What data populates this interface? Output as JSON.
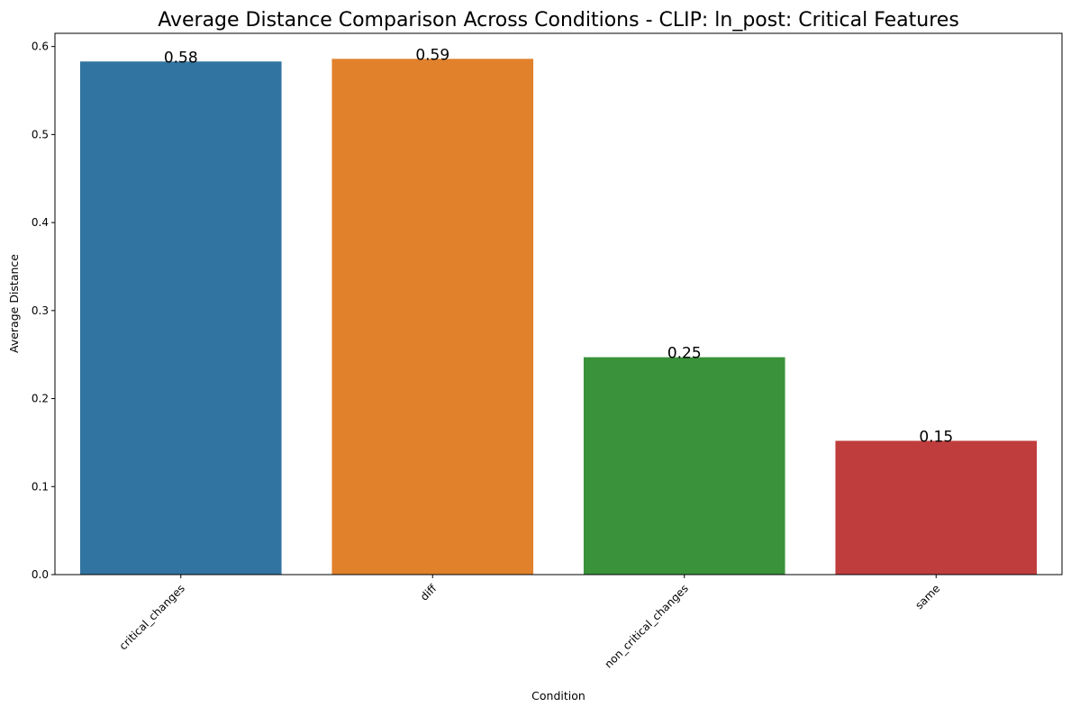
{
  "chart_data": {
    "type": "bar",
    "title": "Average Distance Comparison Across Conditions - CLIP: ln_post: Critical Features",
    "xlabel": "Condition",
    "ylabel": "Average Distance",
    "categories": [
      "critical_changes",
      "diff",
      "non_critical_changes",
      "same"
    ],
    "values": [
      0.583,
      0.586,
      0.247,
      0.152
    ],
    "data_labels": [
      "0.58",
      "0.59",
      "0.25",
      "0.15"
    ],
    "colors": [
      "#3274a1",
      "#e1812c",
      "#3a923a",
      "#c03d3e"
    ],
    "ylim": [
      0,
      0.615
    ],
    "yticks": [
      0.0,
      0.1,
      0.2,
      0.3,
      0.4,
      0.5,
      0.6
    ],
    "ytick_labels": [
      "0.0",
      "0.1",
      "0.2",
      "0.3",
      "0.4",
      "0.5",
      "0.6"
    ],
    "grid": false,
    "legend": "none"
  }
}
